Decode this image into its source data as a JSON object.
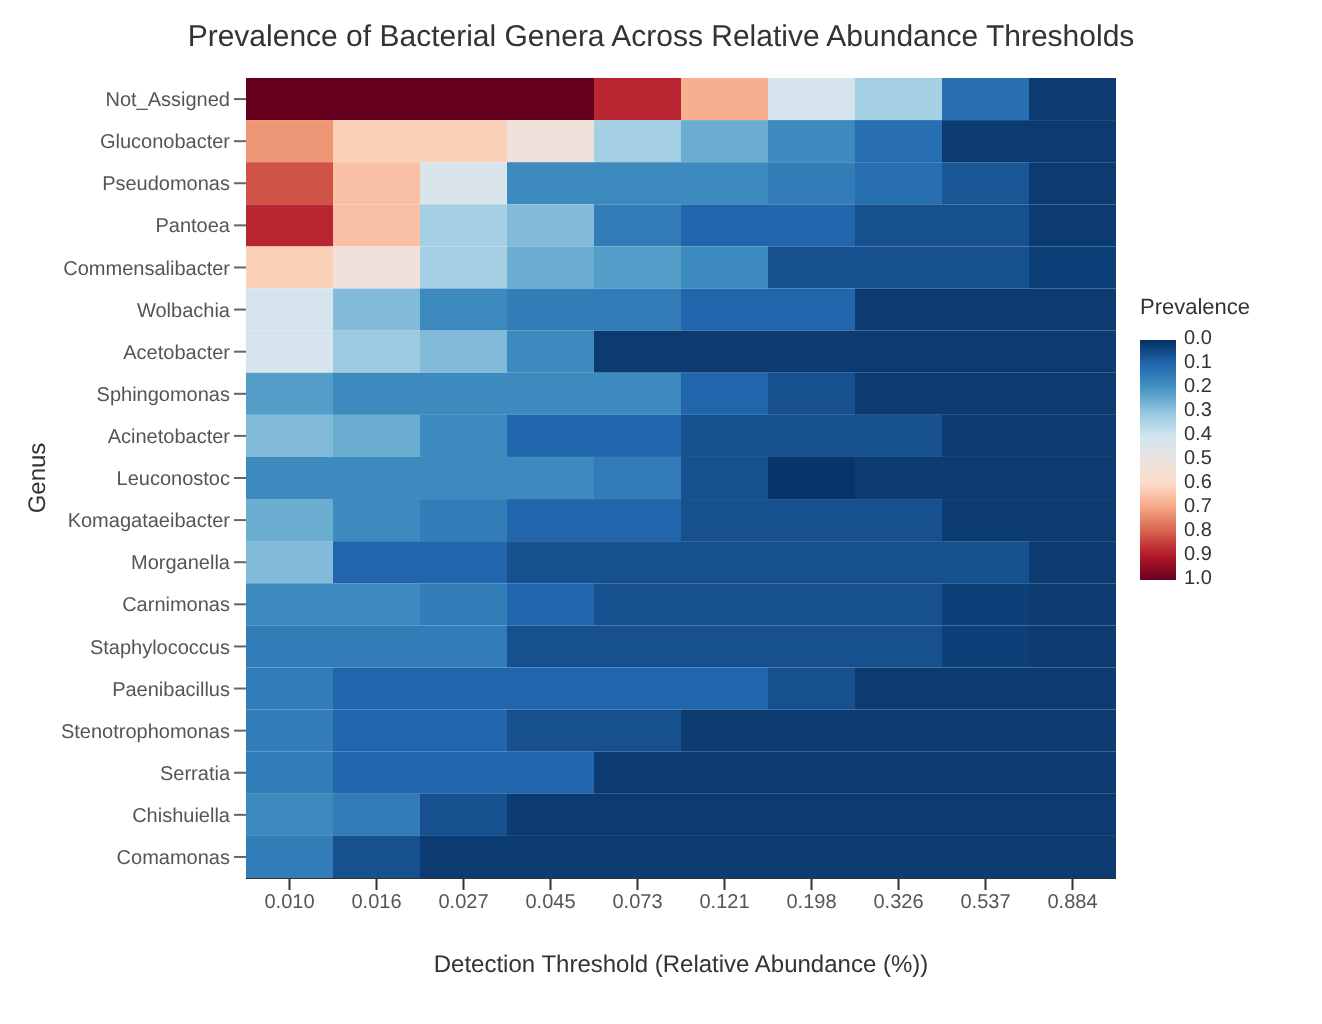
{
  "chart_data": {
    "type": "heatmap",
    "title": "Prevalence of Bacterial Genera Across Relative Abundance Thresholds",
    "xlabel": "Detection Threshold (Relative Abundance (%))",
    "ylabel": "Genus",
    "legend_title": "Prevalence",
    "categories": [
      "0.010",
      "0.016",
      "0.027",
      "0.045",
      "0.073",
      "0.121",
      "0.198",
      "0.326",
      "0.537",
      "0.884"
    ],
    "y_categories": [
      "Not_Assigned",
      "Gluconobacter",
      "Pseudomonas",
      "Pantoea",
      "Commensalibacter",
      "Wolbachia",
      "Acetobacter",
      "Sphingomonas",
      "Acinetobacter",
      "Leuconostoc",
      "Komagataeibacter",
      "Morganella",
      "Carnimonas",
      "Staphylococcus",
      "Paenibacillus",
      "Stenotrophomonas",
      "Serratia",
      "Chishuiella",
      "Comamonas"
    ],
    "cells": [
      [
        1.0,
        1.0,
        1.0,
        1.0,
        0.88,
        0.68,
        0.42,
        0.33,
        0.12,
        0.02
      ],
      [
        0.72,
        0.62,
        0.62,
        0.52,
        0.33,
        0.25,
        0.18,
        0.12,
        0.02,
        0.02
      ],
      [
        0.82,
        0.65,
        0.43,
        0.18,
        0.18,
        0.18,
        0.15,
        0.12,
        0.07,
        0.02
      ],
      [
        0.88,
        0.65,
        0.33,
        0.28,
        0.15,
        0.1,
        0.1,
        0.06,
        0.06,
        0.02
      ],
      [
        0.62,
        0.52,
        0.33,
        0.25,
        0.22,
        0.18,
        0.06,
        0.06,
        0.06,
        0.03
      ],
      [
        0.42,
        0.28,
        0.18,
        0.15,
        0.15,
        0.1,
        0.1,
        0.02,
        0.02,
        0.02
      ],
      [
        0.42,
        0.32,
        0.28,
        0.18,
        0.02,
        0.02,
        0.02,
        0.02,
        0.02,
        0.02
      ],
      [
        0.22,
        0.18,
        0.18,
        0.18,
        0.18,
        0.1,
        0.06,
        0.02,
        0.02,
        0.02
      ],
      [
        0.28,
        0.25,
        0.18,
        0.1,
        0.1,
        0.06,
        0.06,
        0.06,
        0.02,
        0.02
      ],
      [
        0.18,
        0.18,
        0.18,
        0.18,
        0.15,
        0.06,
        0.01,
        0.02,
        0.02,
        0.02
      ],
      [
        0.25,
        0.18,
        0.15,
        0.1,
        0.1,
        0.06,
        0.06,
        0.06,
        0.02,
        0.02
      ],
      [
        0.28,
        0.1,
        0.1,
        0.06,
        0.06,
        0.06,
        0.06,
        0.06,
        0.06,
        0.02
      ],
      [
        0.18,
        0.18,
        0.15,
        0.1,
        0.06,
        0.06,
        0.06,
        0.06,
        0.03,
        0.02
      ],
      [
        0.15,
        0.15,
        0.15,
        0.06,
        0.06,
        0.06,
        0.06,
        0.06,
        0.03,
        0.02
      ],
      [
        0.15,
        0.1,
        0.1,
        0.1,
        0.1,
        0.1,
        0.06,
        0.02,
        0.02,
        0.02
      ],
      [
        0.15,
        0.1,
        0.1,
        0.06,
        0.06,
        0.02,
        0.02,
        0.02,
        0.02,
        0.02
      ],
      [
        0.15,
        0.1,
        0.1,
        0.1,
        0.02,
        0.02,
        0.02,
        0.02,
        0.02,
        0.02
      ],
      [
        0.18,
        0.15,
        0.06,
        0.02,
        0.02,
        0.02,
        0.02,
        0.02,
        0.02,
        0.02
      ],
      [
        0.15,
        0.06,
        0.02,
        0.02,
        0.02,
        0.02,
        0.02,
        0.02,
        0.02,
        0.02
      ]
    ],
    "clim": [
      0,
      1
    ],
    "cticks": [
      {
        "value": 0,
        "label": "0.0"
      },
      {
        "value": 0.1,
        "label": "0.1"
      },
      {
        "value": 0.2,
        "label": "0.2"
      },
      {
        "value": 0.3,
        "label": "0.3"
      },
      {
        "value": 0.4,
        "label": "0.4"
      },
      {
        "value": 0.5,
        "label": "0.5"
      },
      {
        "value": 0.6,
        "label": "0.6"
      },
      {
        "value": 0.7,
        "label": "0.7"
      },
      {
        "value": 0.8,
        "label": "0.8"
      },
      {
        "value": 0.9,
        "label": "0.9"
      },
      {
        "value": 1,
        "label": "1.0"
      }
    ]
  }
}
